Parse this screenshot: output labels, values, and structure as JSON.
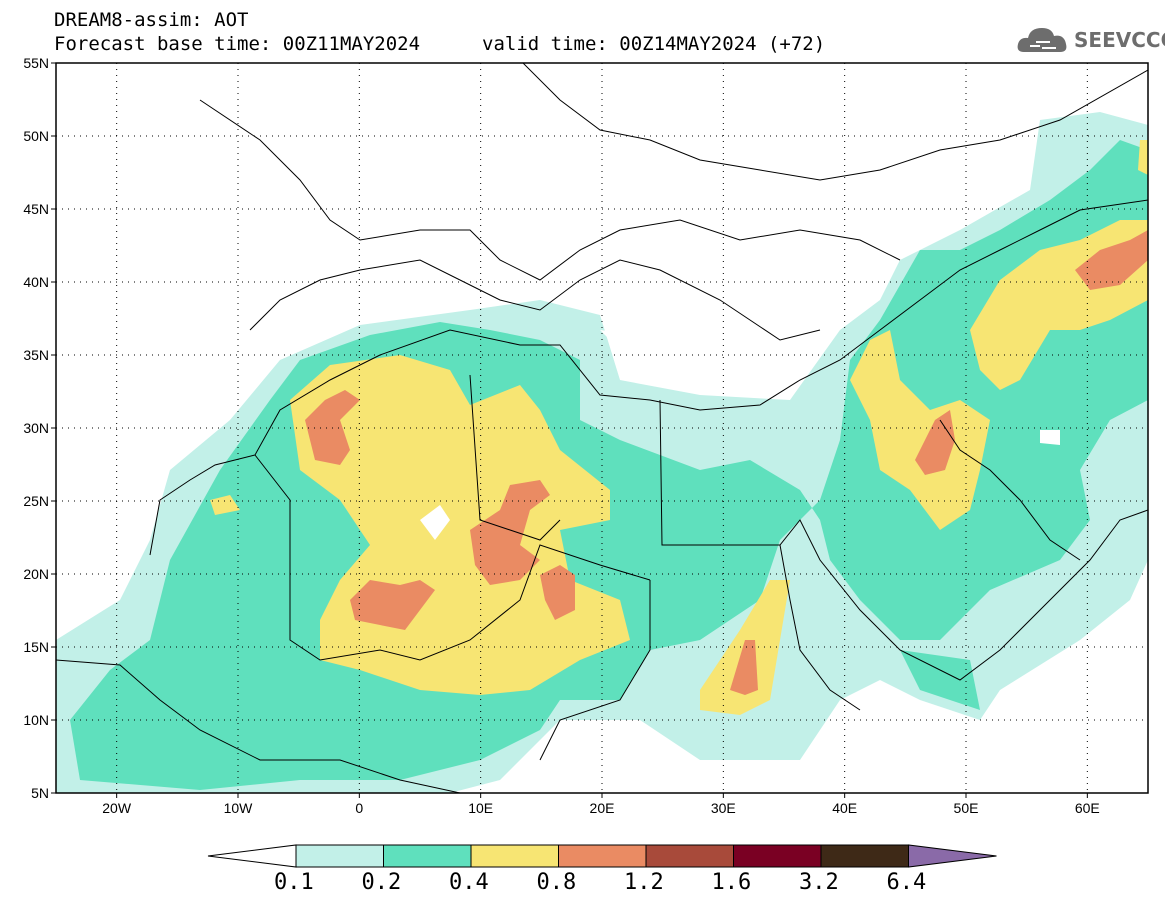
{
  "header": {
    "line1": "DREAM8-assim: AOT",
    "base_time": "Forecast base time: 00Z11MAY2024",
    "valid_time": "valid time: 00Z14MAY2024 (+72)",
    "logo_text": "SEEVCCC"
  },
  "map": {
    "lat_labels": [
      "55N",
      "50N",
      "45N",
      "40N",
      "35N",
      "30N",
      "25N",
      "20N",
      "15N",
      "10N",
      "5N"
    ],
    "lon_labels": [
      "20W",
      "10W",
      "0",
      "10E",
      "20E",
      "30E",
      "40E",
      "50E",
      "60E"
    ],
    "lat_range": [
      5,
      55
    ],
    "lon_range": [
      -25,
      65
    ],
    "grid": "dotted"
  },
  "colorbar": {
    "labels": [
      "0.1",
      "0.2",
      "0.4",
      "0.8",
      "1.2",
      "1.6",
      "3.2",
      "6.4"
    ],
    "colors": [
      "#ffffff",
      "#c2f0e8",
      "#5fe0bd",
      "#f7e573",
      "#ea8b63",
      "#a84a3a",
      "#7a0023",
      "#3e2917",
      "#8a6aa8"
    ]
  },
  "colors": {
    "lightest": "#c2f0e8",
    "light": "#5fe0bd",
    "mid": "#f7e573",
    "orange": "#ea8b63",
    "border": "#000000"
  }
}
